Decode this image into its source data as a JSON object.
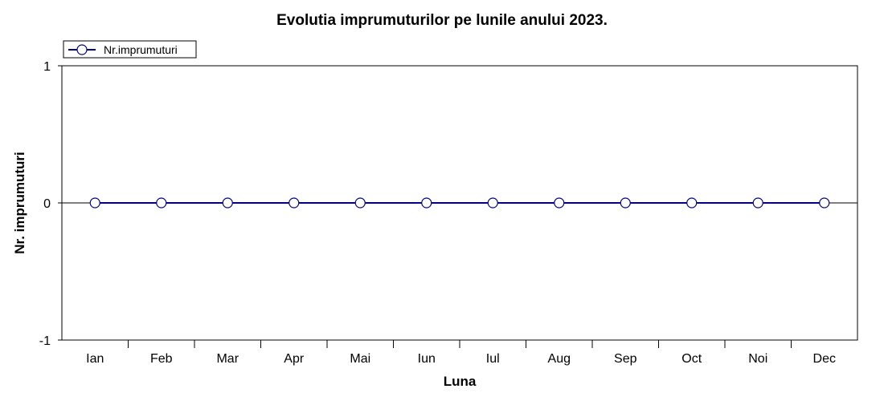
{
  "chart_data": {
    "type": "line",
    "title": "Evolutia imprumuturilor pe lunile anului 2023.",
    "xlabel": "Luna",
    "ylabel": "Nr. imprumuturi",
    "categories": [
      "Ian",
      "Feb",
      "Mar",
      "Apr",
      "Mai",
      "Iun",
      "Iul",
      "Aug",
      "Sep",
      "Oct",
      "Noi",
      "Dec"
    ],
    "series": [
      {
        "name": "Nr.imprumuturi",
        "values": [
          0,
          0,
          0,
          0,
          0,
          0,
          0,
          0,
          0,
          0,
          0,
          0
        ]
      }
    ],
    "ylim": [
      -1,
      1
    ],
    "yticks": [
      -1,
      0,
      1
    ],
    "legend_position": "top-left",
    "grid": false,
    "colors": {
      "line": "#000080",
      "marker_fill": "#ffffff",
      "marker_stroke": "#000080",
      "axis": "#000000"
    }
  }
}
